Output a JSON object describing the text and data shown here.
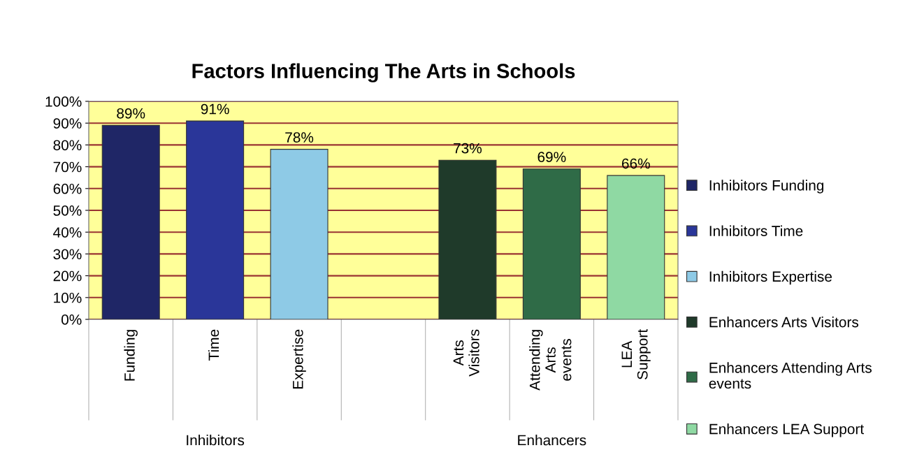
{
  "chart_data": {
    "type": "bar",
    "title": "Factors Influencing The Arts in Schools",
    "categories": [
      "Funding",
      "Time",
      "Expertise",
      null,
      "Arts\nVisitors",
      "Attending\nArts\nevents",
      "LEA\nSupport"
    ],
    "series": [
      {
        "name": "Inhibitors Funding",
        "color": "#1f2666",
        "values": [
          89,
          null,
          null,
          null,
          null,
          null,
          null
        ],
        "value_labels": [
          "89%",
          null,
          null,
          null,
          null,
          null,
          null
        ]
      },
      {
        "name": "Inhibitors Time",
        "color": "#2a3699",
        "values": [
          null,
          91,
          null,
          null,
          null,
          null,
          null
        ],
        "value_labels": [
          null,
          "91%",
          null,
          null,
          null,
          null,
          null
        ]
      },
      {
        "name": "Inhibitors Expertise",
        "color": "#8ecae6",
        "values": [
          null,
          null,
          78,
          null,
          null,
          null,
          null
        ],
        "value_labels": [
          null,
          null,
          "78%",
          null,
          null,
          null,
          null
        ]
      },
      {
        "name": "Enhancers Arts Visitors",
        "color": "#1f3a2a",
        "values": [
          null,
          null,
          null,
          null,
          73,
          null,
          null
        ],
        "value_labels": [
          null,
          null,
          null,
          null,
          "73%",
          null,
          null
        ]
      },
      {
        "name": "Enhancers Attending Arts\nevents",
        "color": "#2f6b47",
        "values": [
          null,
          null,
          null,
          null,
          null,
          69,
          null
        ],
        "value_labels": [
          null,
          null,
          null,
          null,
          null,
          "69%",
          null
        ]
      },
      {
        "name": "Enhancers LEA Support",
        "color": "#8fd9a3",
        "values": [
          null,
          null,
          null,
          null,
          null,
          null,
          66
        ],
        "value_labels": [
          null,
          null,
          null,
          null,
          null,
          null,
          "66%"
        ]
      }
    ],
    "ylim": [
      0,
      100
    ],
    "yticks": [
      {
        "value": 0,
        "label": "0%"
      },
      {
        "value": 10,
        "label": "10%"
      },
      {
        "value": 20,
        "label": "20%"
      },
      {
        "value": 30,
        "label": "30%"
      },
      {
        "value": 40,
        "label": "40%"
      },
      {
        "value": 50,
        "label": "50%"
      },
      {
        "value": 60,
        "label": "60%"
      },
      {
        "value": 70,
        "label": "70%"
      },
      {
        "value": 80,
        "label": "80%"
      },
      {
        "value": 90,
        "label": "90%"
      },
      {
        "value": 100,
        "label": "100%"
      }
    ],
    "grid": "y",
    "legend": "right",
    "annotations": [
      "Inhibitors",
      "Enhancers"
    ]
  }
}
